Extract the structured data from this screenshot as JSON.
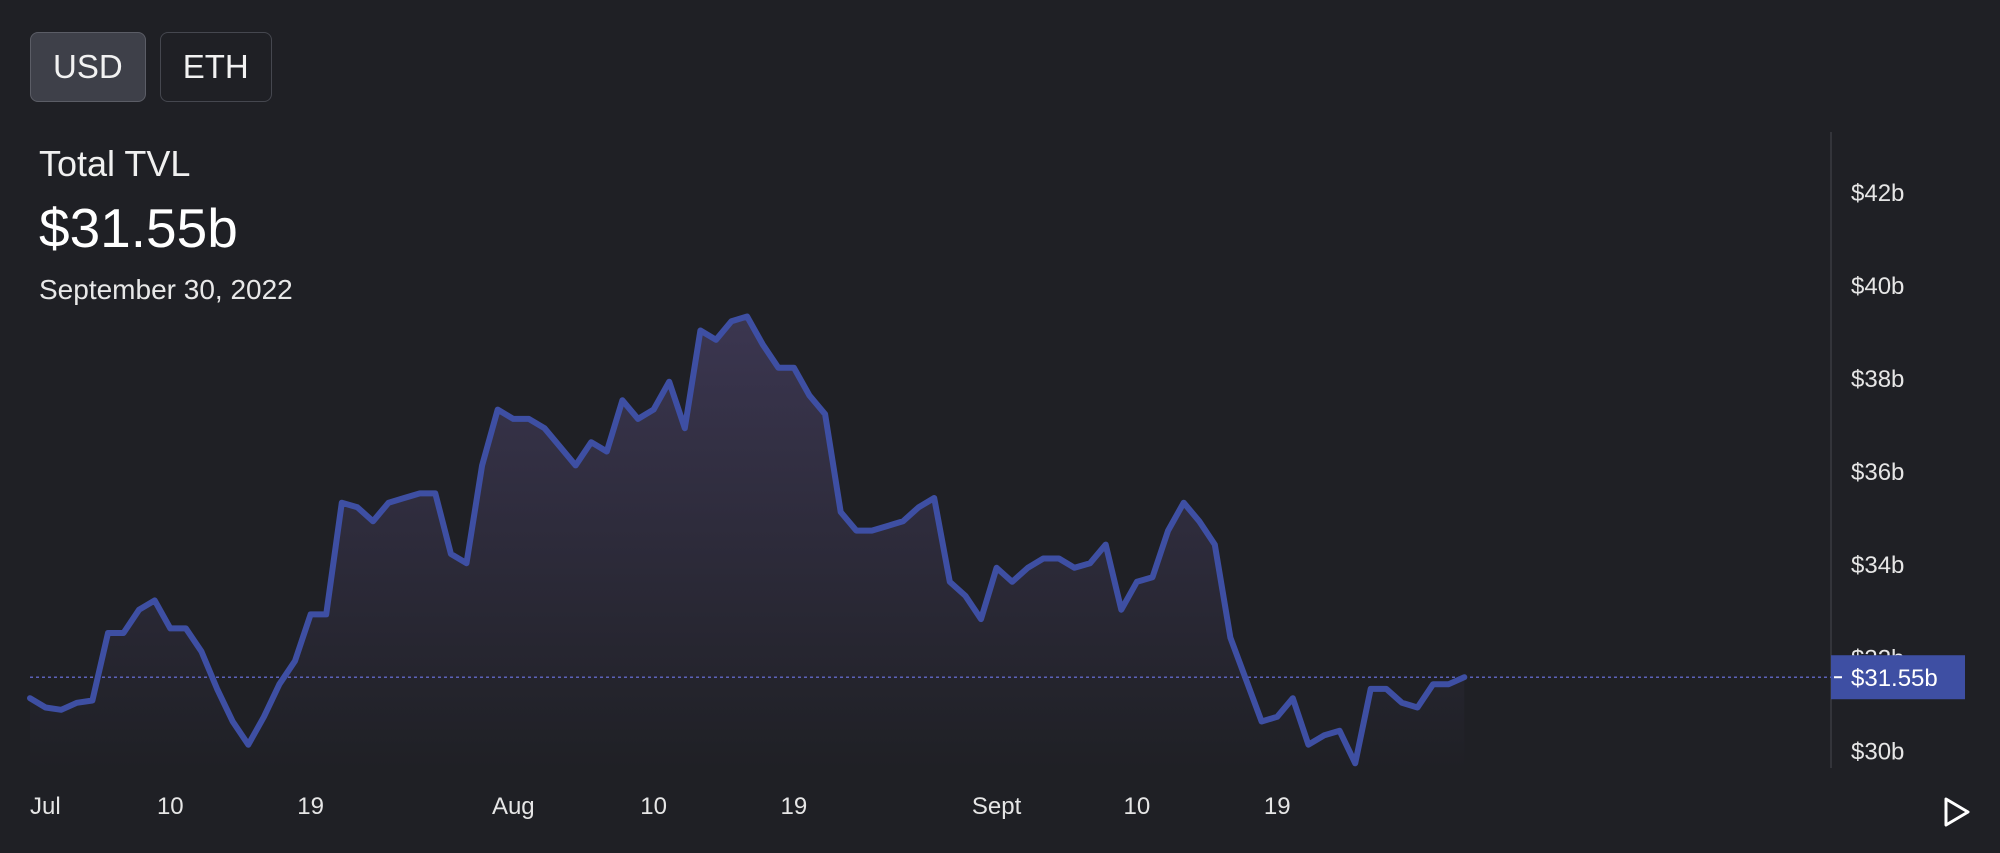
{
  "toggle": {
    "options": [
      "USD",
      "ETH"
    ],
    "selected": "USD"
  },
  "summary": {
    "label": "Total TVL",
    "value": "$31.55b",
    "date": "September 30, 2022"
  },
  "colors": {
    "background": "#1f2025",
    "line": "#3e4fa3",
    "area_top": "#3b3650",
    "current_tag": "#3e4fa3"
  },
  "icons": {
    "play": "play-icon"
  },
  "chart_data": {
    "type": "area",
    "title": "",
    "xlabel": "",
    "ylabel": "",
    "x_tick_labels": [
      "Jul",
      "10",
      "19",
      "Aug",
      "10",
      "19",
      "Sept",
      "10",
      "19"
    ],
    "x_tick_days": [
      1,
      10,
      19,
      32,
      41,
      50,
      63,
      72,
      81
    ],
    "y_tick_labels": [
      "$30b",
      "$32b",
      "$34b",
      "$36b",
      "$38b",
      "$40b",
      "$42b"
    ],
    "y_tick_values": [
      30,
      32,
      34,
      36,
      38,
      40,
      42
    ],
    "ylim": [
      29.6,
      43.5
    ],
    "grid": false,
    "current_value": 31.55,
    "current_label": "$31.55b",
    "series": [
      {
        "values": [
          31.1,
          30.9,
          30.85,
          31.0,
          31.05,
          32.5,
          32.5,
          33.0,
          33.2,
          32.6,
          32.6,
          32.1,
          31.3,
          30.6,
          30.1,
          30.7,
          31.4,
          31.9,
          32.9,
          32.9,
          35.3,
          35.2,
          34.9,
          35.3,
          35.4,
          35.5,
          35.5,
          34.2,
          34.0,
          36.1,
          37.3,
          37.1,
          37.1,
          36.9,
          36.5,
          36.1,
          36.6,
          36.4,
          37.5,
          37.1,
          37.3,
          37.9,
          36.9,
          39.0,
          38.8,
          39.2,
          39.3,
          38.7,
          38.2,
          38.2,
          37.6,
          37.2,
          35.1,
          34.7,
          34.7,
          34.8,
          34.9,
          35.2,
          35.4,
          33.6,
          33.3,
          32.8,
          33.9,
          33.6,
          33.9,
          34.1,
          34.1,
          33.9,
          34.0,
          34.4,
          33.0,
          33.6,
          33.7,
          34.7,
          35.3,
          34.9,
          34.4,
          32.4,
          31.5,
          30.6,
          30.7,
          31.1,
          30.1,
          30.3,
          30.4,
          29.7,
          31.3,
          31.3,
          31.0,
          30.9,
          31.4,
          31.4,
          31.55
        ]
      }
    ]
  }
}
